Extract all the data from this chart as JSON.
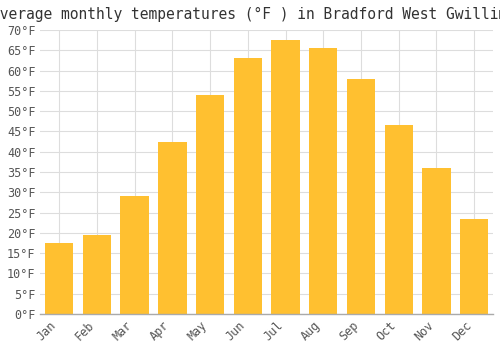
{
  "title": "Average monthly temperatures (°F ) in Bradford West Gwillimbury",
  "months": [
    "Jan",
    "Feb",
    "Mar",
    "Apr",
    "May",
    "Jun",
    "Jul",
    "Aug",
    "Sep",
    "Oct",
    "Nov",
    "Dec"
  ],
  "values": [
    17.5,
    19.5,
    29.0,
    42.5,
    54.0,
    63.0,
    67.5,
    65.5,
    58.0,
    46.5,
    36.0,
    23.5
  ],
  "bar_color_top": "#FFAA00",
  "bar_color_bottom": "#FFD060",
  "bar_edge_color": "none",
  "background_color": "#FFFFFF",
  "plot_bg_color": "#FFFFFF",
  "grid_color": "#DDDDDD",
  "ylim": [
    0,
    70
  ],
  "ytick_step": 5,
  "title_fontsize": 10.5,
  "tick_fontsize": 8.5,
  "bar_width": 0.75
}
